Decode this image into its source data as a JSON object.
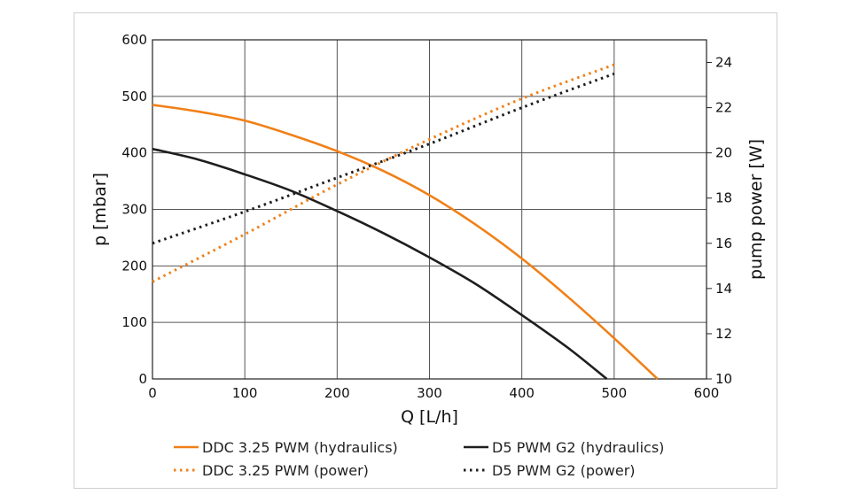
{
  "chart_data": {
    "type": "line",
    "xlabel": "Q [L/h]",
    "ylabel": "p [mbar]",
    "y2label": "pump power [W]",
    "xlim": [
      0,
      600
    ],
    "ylim": [
      0,
      600
    ],
    "y2lim": [
      10,
      25
    ],
    "xticks": [
      0,
      100,
      200,
      300,
      400,
      500,
      600
    ],
    "yticks": [
      0,
      100,
      200,
      300,
      400,
      500,
      600
    ],
    "y2ticks": [
      10,
      12,
      14,
      16,
      18,
      20,
      22,
      24
    ],
    "grid": true,
    "legend_position": "bottom",
    "colors": {
      "ddc": "#f08018",
      "d5": "#1e1e1e"
    },
    "series": [
      {
        "name": "DDC 3.25 PWM (hydraulics)",
        "axis": "left",
        "style": "solid",
        "color": "#f08018",
        "x": [
          0,
          50,
          100,
          150,
          200,
          250,
          300,
          350,
          400,
          450,
          500,
          547
        ],
        "y": [
          485,
          473,
          457,
          432,
          403,
          368,
          325,
          273,
          213,
          145,
          72,
          0
        ]
      },
      {
        "name": "D5 PWM G2 (hydraulics)",
        "axis": "left",
        "style": "solid",
        "color": "#1e1e1e",
        "x": [
          0,
          50,
          100,
          150,
          200,
          250,
          300,
          350,
          400,
          450,
          492
        ],
        "y": [
          407,
          388,
          362,
          333,
          297,
          258,
          215,
          168,
          113,
          55,
          0
        ]
      },
      {
        "name": "DDC 3.25 PWM (power)",
        "axis": "right",
        "style": "dotted",
        "color": "#f08018",
        "x": [
          0,
          100,
          200,
          300,
          400,
          500
        ],
        "y": [
          14.3,
          16.4,
          18.6,
          20.6,
          22.4,
          23.9
        ]
      },
      {
        "name": "D5 PWM G2 (power)",
        "axis": "right",
        "style": "dotted",
        "color": "#1e1e1e",
        "x": [
          0,
          100,
          200,
          300,
          400,
          500
        ],
        "y": [
          16.0,
          17.4,
          18.9,
          20.4,
          22.0,
          23.5
        ]
      }
    ]
  }
}
